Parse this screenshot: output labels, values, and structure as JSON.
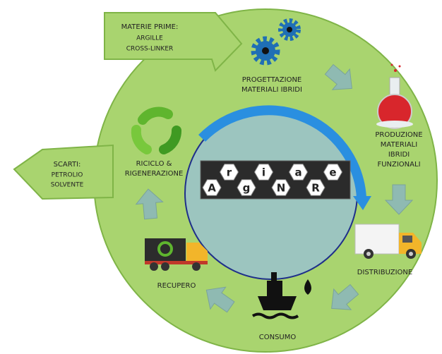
{
  "inputs": {
    "lines": [
      "MATERIE PRIME:",
      "ARGILLE",
      "CROSS-LINKER"
    ]
  },
  "waste": {
    "lines": [
      "SCARTI:",
      "PETROLIO",
      "SOLVENTE"
    ]
  },
  "stages": [
    {
      "lines": [
        "PROGETTAZIONE",
        "MATERIALI IBRIDI"
      ]
    },
    {
      "lines": [
        "PRODUZIONE",
        "MATERIALI",
        "IBRIDI",
        "FUNZIONALI"
      ]
    },
    {
      "lines": [
        "DISTRIBUZIONE"
      ]
    },
    {
      "lines": [
        "CONSUMO"
      ]
    },
    {
      "lines": [
        "RECUPERO"
      ]
    },
    {
      "lines": [
        "RICICLO &",
        "RIGENERAZIONE"
      ]
    }
  ],
  "logo": {
    "letters": [
      {
        "text": "A",
        "color": "#d9302a"
      },
      {
        "text": "r",
        "color": "#2f7fc4"
      },
      {
        "text": "g",
        "color": "#2f7fc4"
      },
      {
        "text": "i",
        "color": "#2f7fc4"
      },
      {
        "text": "N",
        "color": "#d9302a"
      },
      {
        "text": "a",
        "color": "#2f7fc4"
      },
      {
        "text": "R",
        "color": "#d9302a"
      },
      {
        "text": "e",
        "color": "#2f7fc4"
      }
    ]
  }
}
